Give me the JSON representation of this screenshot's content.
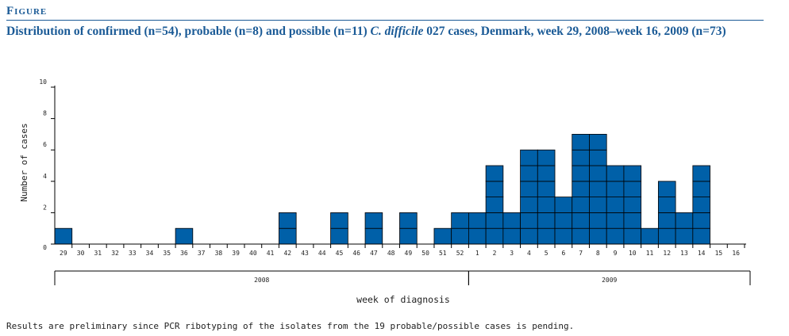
{
  "header": {
    "figure_label": "Figure",
    "title_part1": "Distribution of confirmed (n=54), probable (n=8) and possible (n=11) ",
    "title_italic": "C. difficile",
    "title_part2": " 027 cases, Denmark, week 29, 2008–week 16, 2009 (n=73)"
  },
  "footnote": "Results are preliminary since PCR ribotyping of the isolates from the 19 probable/possible cases is pending.",
  "colors": {
    "bar": "#0060a8",
    "text": "#222222",
    "title": "#1a5a96"
  },
  "chart_data": {
    "type": "bar",
    "categories": [
      "29",
      "30",
      "31",
      "32",
      "33",
      "34",
      "35",
      "36",
      "37",
      "38",
      "39",
      "40",
      "41",
      "42",
      "43",
      "44",
      "45",
      "46",
      "47",
      "48",
      "49",
      "50",
      "51",
      "52",
      "1",
      "2",
      "3",
      "4",
      "5",
      "6",
      "7",
      "8",
      "9",
      "10",
      "11",
      "12",
      "13",
      "14",
      "15",
      "16"
    ],
    "values": [
      1,
      0,
      0,
      0,
      0,
      0,
      0,
      1,
      0,
      0,
      0,
      0,
      0,
      2,
      0,
      0,
      2,
      0,
      2,
      0,
      2,
      0,
      1,
      2,
      2,
      5,
      2,
      6,
      6,
      3,
      7,
      7,
      5,
      5,
      1,
      4,
      2,
      5,
      0,
      0
    ],
    "ylabel": "Number of cases",
    "xlabel": "week of diagnosis",
    "ylim": [
      0,
      10
    ],
    "yticks": [
      "0",
      "2",
      "4",
      "6",
      "8",
      "10"
    ],
    "year_groups": [
      {
        "label": "2008",
        "weeks": 24
      },
      {
        "label": "2009",
        "weeks": 16
      }
    ],
    "grid": false,
    "stacked_unit_boxes": true
  }
}
